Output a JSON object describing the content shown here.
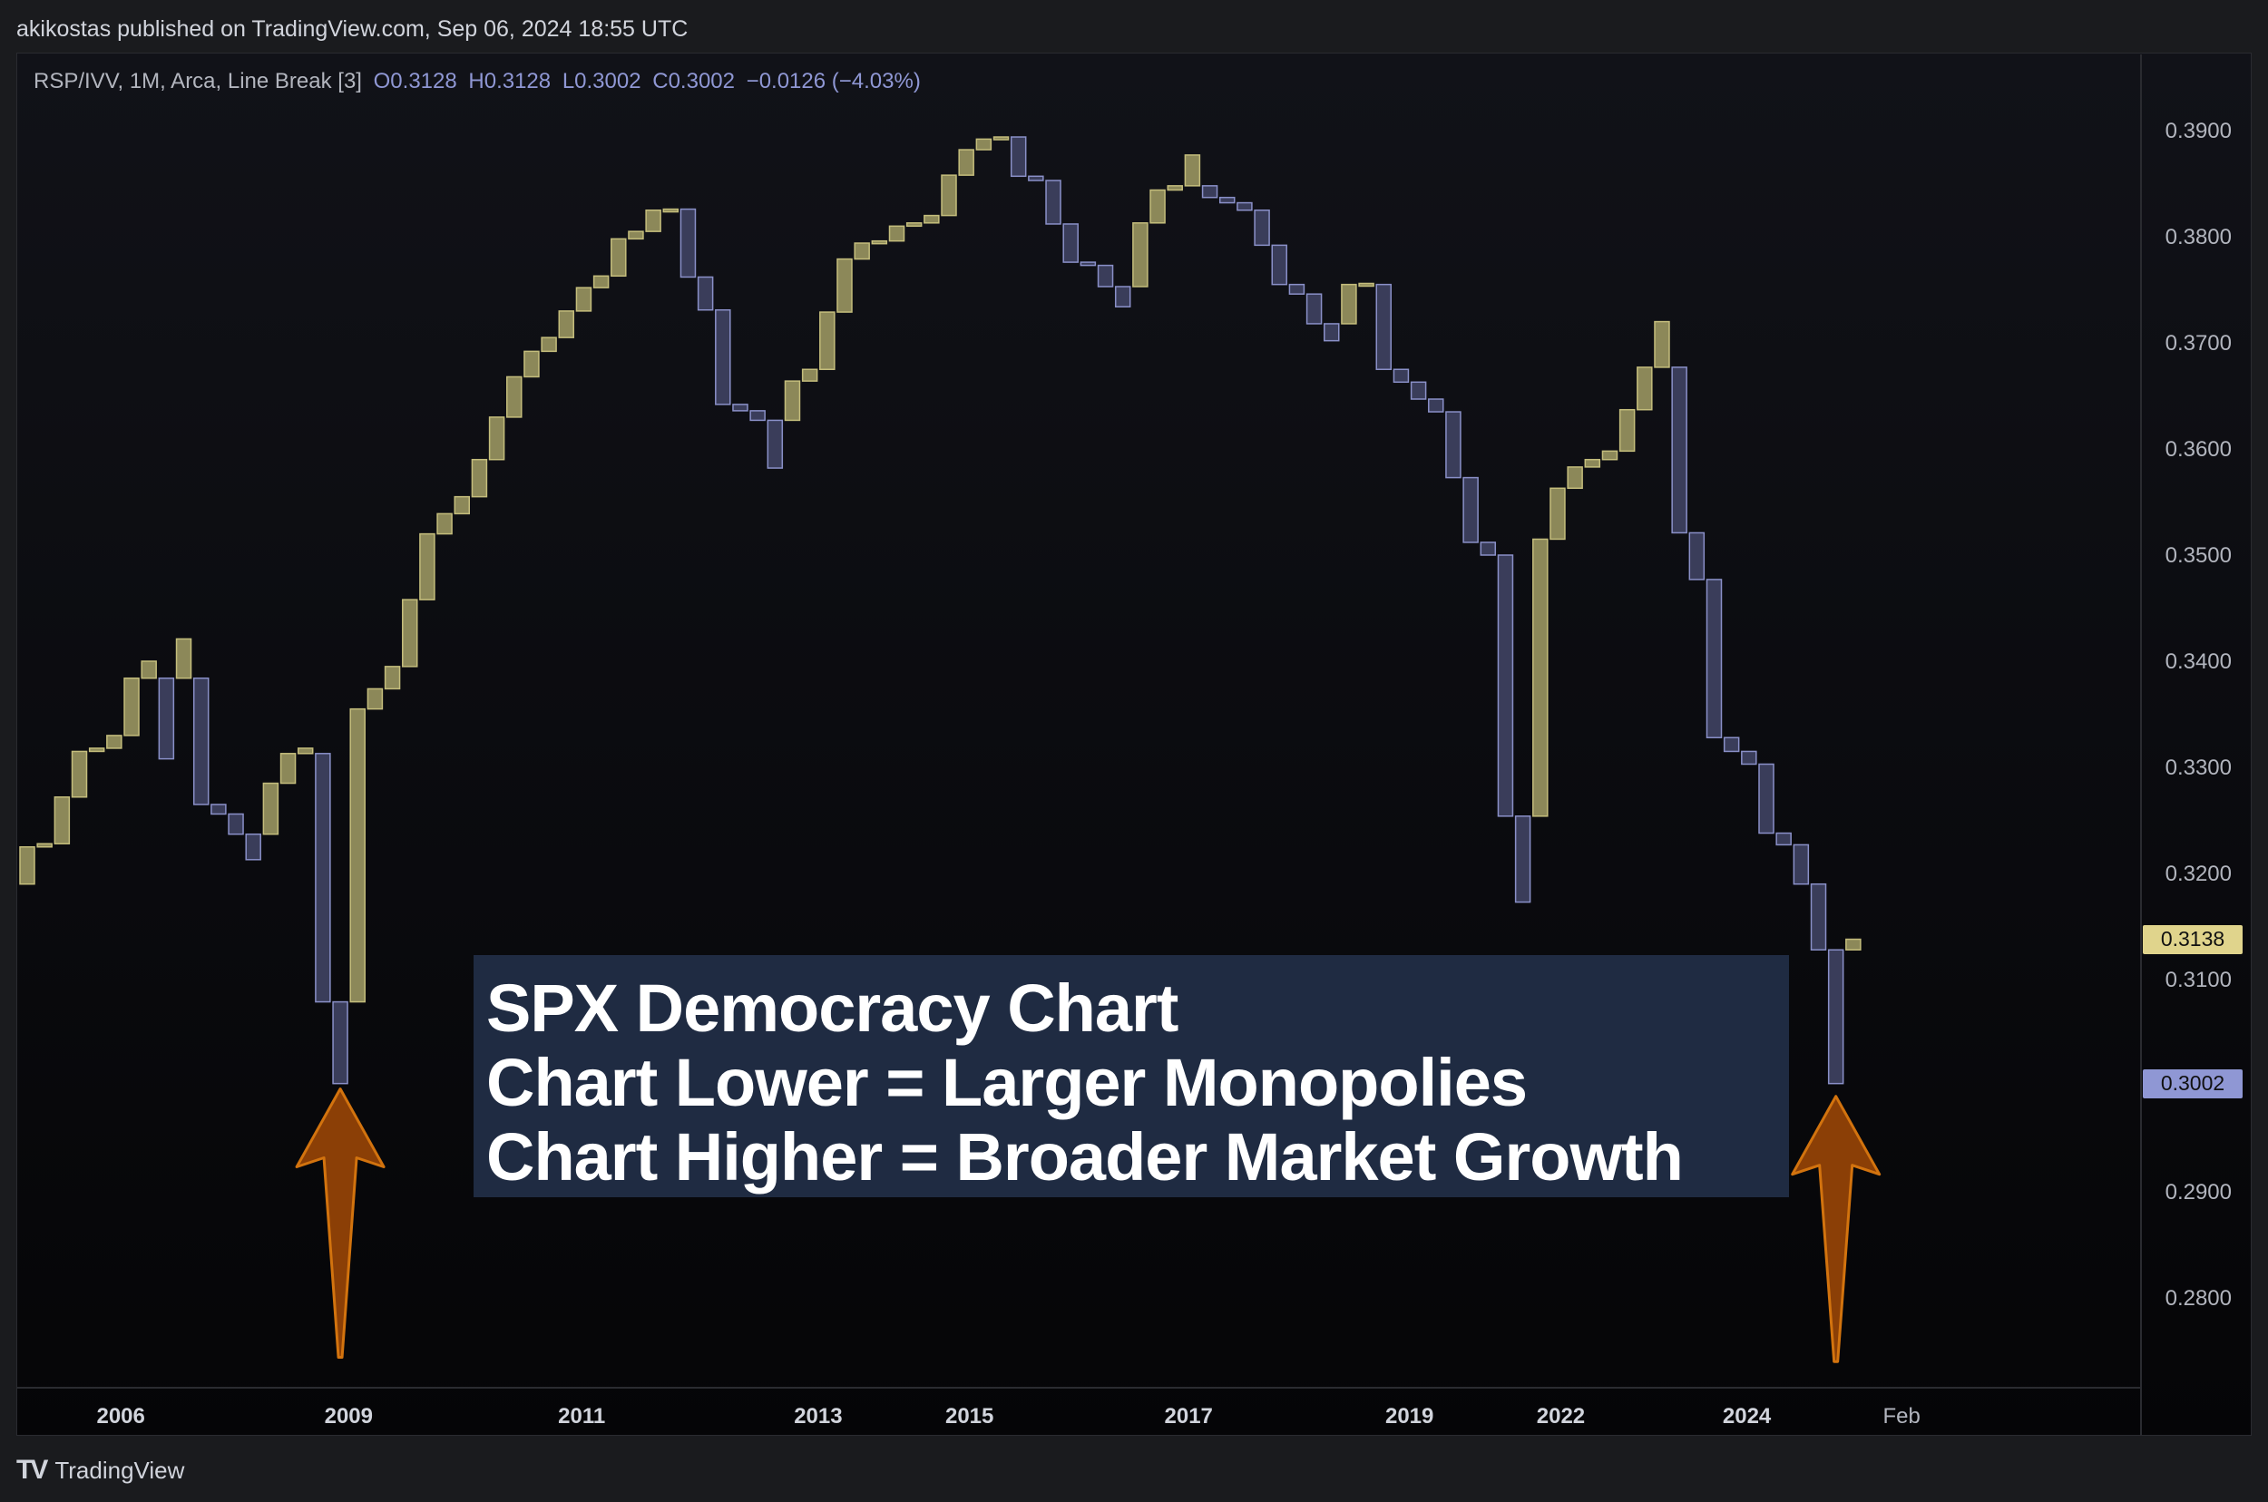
{
  "header": {
    "published_by": "akikostas published on TradingView.com, Sep 06, 2024 18:55 UTC"
  },
  "legend": {
    "symbol": "RSP/IVV, 1M, Arca, Line Break [3]",
    "open": "O0.3128",
    "high": "H0.3128",
    "low": "L0.3002",
    "close": "C0.3002",
    "change": "−0.0126 (−4.03%)"
  },
  "annotation": {
    "line1": "SPX Democracy Chart",
    "line2": "Chart Lower = Larger Monopolies",
    "line3": "Chart Higher = Broader Market Growth"
  },
  "price_tags": {
    "current": "0.3138",
    "last_close": "0.3002"
  },
  "footer": {
    "logo_mark": "TV",
    "logo_text": "TradingView"
  },
  "colors": {
    "up": "#8c8859",
    "up_border": "#c4bd7c",
    "down": "#3a3d5a",
    "down_border": "#8a90c8",
    "arrow_fill": "#8b3f06",
    "arrow_stroke": "#d2730e",
    "tag_current": "#e0d48c",
    "tag_last": "#8f97d4"
  },
  "chart_data": {
    "type": "line_break",
    "title": "RSP/IVV, 1M, Arca, Line Break [3]",
    "ylim": [
      0.2735,
      0.3958
    ],
    "y_ticks": [
      0.39,
      0.38,
      0.37,
      0.36,
      0.35,
      0.34,
      0.33,
      0.32,
      0.31,
      0.29,
      0.28
    ],
    "y_tick_labels": [
      "0.3900",
      "0.3800",
      "0.3700",
      "0.3600",
      "0.3500",
      "0.3400",
      "0.3300",
      "0.3200",
      "0.3100",
      "0.2900",
      "0.2800"
    ],
    "x_labels": [
      {
        "label": "2006",
        "brick": 5.8
      },
      {
        "label": "2009",
        "brick": 18.9
      },
      {
        "label": "2011",
        "brick": 32.3
      },
      {
        "label": "2013",
        "brick": 45.9
      },
      {
        "label": "2015",
        "brick": 54.6
      },
      {
        "label": "2017",
        "brick": 67.2
      },
      {
        "label": "2019",
        "brick": 79.9
      },
      {
        "label": "2022",
        "brick": 88.6
      },
      {
        "label": "2024",
        "brick": 99.3
      },
      {
        "label": "Feb",
        "brick": 108.2
      }
    ],
    "bricks": [
      {
        "open": 0.319,
        "close": 0.3225
      },
      {
        "open": 0.3225,
        "close": 0.3228
      },
      {
        "open": 0.3228,
        "close": 0.3272
      },
      {
        "open": 0.3272,
        "close": 0.3315
      },
      {
        "open": 0.3315,
        "close": 0.3318
      },
      {
        "open": 0.3318,
        "close": 0.333
      },
      {
        "open": 0.333,
        "close": 0.3384
      },
      {
        "open": 0.3384,
        "close": 0.34
      },
      {
        "open": 0.3384,
        "close": 0.3308
      },
      {
        "open": 0.3384,
        "close": 0.3421
      },
      {
        "open": 0.3384,
        "close": 0.3265
      },
      {
        "open": 0.3265,
        "close": 0.3256
      },
      {
        "open": 0.3256,
        "close": 0.3237
      },
      {
        "open": 0.3237,
        "close": 0.3213
      },
      {
        "open": 0.3237,
        "close": 0.3285
      },
      {
        "open": 0.3285,
        "close": 0.3313
      },
      {
        "open": 0.3313,
        "close": 0.3318
      },
      {
        "open": 0.3313,
        "close": 0.3079
      },
      {
        "open": 0.3079,
        "close": 0.3002
      },
      {
        "open": 0.3079,
        "close": 0.3355
      },
      {
        "open": 0.3355,
        "close": 0.3374
      },
      {
        "open": 0.3374,
        "close": 0.3395
      },
      {
        "open": 0.3395,
        "close": 0.3458
      },
      {
        "open": 0.3458,
        "close": 0.352
      },
      {
        "open": 0.352,
        "close": 0.3539
      },
      {
        "open": 0.3539,
        "close": 0.3555
      },
      {
        "open": 0.3555,
        "close": 0.359
      },
      {
        "open": 0.359,
        "close": 0.363
      },
      {
        "open": 0.363,
        "close": 0.3668
      },
      {
        "open": 0.3668,
        "close": 0.3692
      },
      {
        "open": 0.3692,
        "close": 0.3705
      },
      {
        "open": 0.3705,
        "close": 0.373
      },
      {
        "open": 0.373,
        "close": 0.3752
      },
      {
        "open": 0.3752,
        "close": 0.3763
      },
      {
        "open": 0.3763,
        "close": 0.3798
      },
      {
        "open": 0.3798,
        "close": 0.3805
      },
      {
        "open": 0.3805,
        "close": 0.3825
      },
      {
        "open": 0.3825,
        "close": 0.3826
      },
      {
        "open": 0.3826,
        "close": 0.3762
      },
      {
        "open": 0.3762,
        "close": 0.3731
      },
      {
        "open": 0.3731,
        "close": 0.3642
      },
      {
        "open": 0.3642,
        "close": 0.3636
      },
      {
        "open": 0.3636,
        "close": 0.3627
      },
      {
        "open": 0.3627,
        "close": 0.3582
      },
      {
        "open": 0.3627,
        "close": 0.3664
      },
      {
        "open": 0.3664,
        "close": 0.3675
      },
      {
        "open": 0.3675,
        "close": 0.3729
      },
      {
        "open": 0.3729,
        "close": 0.3779
      },
      {
        "open": 0.3779,
        "close": 0.3794
      },
      {
        "open": 0.3794,
        "close": 0.3796
      },
      {
        "open": 0.3796,
        "close": 0.381
      },
      {
        "open": 0.381,
        "close": 0.3813
      },
      {
        "open": 0.3813,
        "close": 0.382
      },
      {
        "open": 0.382,
        "close": 0.3858
      },
      {
        "open": 0.3858,
        "close": 0.3882
      },
      {
        "open": 0.3882,
        "close": 0.3892
      },
      {
        "open": 0.3892,
        "close": 0.3894
      },
      {
        "open": 0.3894,
        "close": 0.3857
      },
      {
        "open": 0.3857,
        "close": 0.3853
      },
      {
        "open": 0.3853,
        "close": 0.3812
      },
      {
        "open": 0.3812,
        "close": 0.3776
      },
      {
        "open": 0.3776,
        "close": 0.3773
      },
      {
        "open": 0.3773,
        "close": 0.3753
      },
      {
        "open": 0.3753,
        "close": 0.3734
      },
      {
        "open": 0.3753,
        "close": 0.3813
      },
      {
        "open": 0.3813,
        "close": 0.3844
      },
      {
        "open": 0.3844,
        "close": 0.3848
      },
      {
        "open": 0.3848,
        "close": 0.3877
      },
      {
        "open": 0.3848,
        "close": 0.3837
      },
      {
        "open": 0.3837,
        "close": 0.3832
      },
      {
        "open": 0.3832,
        "close": 0.3825
      },
      {
        "open": 0.3825,
        "close": 0.3792
      },
      {
        "open": 0.3792,
        "close": 0.3755
      },
      {
        "open": 0.3755,
        "close": 0.3746
      },
      {
        "open": 0.3746,
        "close": 0.3718
      },
      {
        "open": 0.3718,
        "close": 0.3702
      },
      {
        "open": 0.3718,
        "close": 0.3755
      },
      {
        "open": 0.3755,
        "close": 0.3756
      },
      {
        "open": 0.3755,
        "close": 0.3675
      },
      {
        "open": 0.3675,
        "close": 0.3663
      },
      {
        "open": 0.3663,
        "close": 0.3647
      },
      {
        "open": 0.3647,
        "close": 0.3635
      },
      {
        "open": 0.3635,
        "close": 0.3573
      },
      {
        "open": 0.3573,
        "close": 0.3512
      },
      {
        "open": 0.3512,
        "close": 0.35
      },
      {
        "open": 0.35,
        "close": 0.3254
      },
      {
        "open": 0.3254,
        "close": 0.3173
      },
      {
        "open": 0.3254,
        "close": 0.3515
      },
      {
        "open": 0.3515,
        "close": 0.3563
      },
      {
        "open": 0.3563,
        "close": 0.3583
      },
      {
        "open": 0.3583,
        "close": 0.359
      },
      {
        "open": 0.359,
        "close": 0.3598
      },
      {
        "open": 0.3598,
        "close": 0.3637
      },
      {
        "open": 0.3637,
        "close": 0.3677
      },
      {
        "open": 0.3677,
        "close": 0.372
      },
      {
        "open": 0.3677,
        "close": 0.3521
      },
      {
        "open": 0.3521,
        "close": 0.3477
      },
      {
        "open": 0.3477,
        "close": 0.3328
      },
      {
        "open": 0.3328,
        "close": 0.3315
      },
      {
        "open": 0.3315,
        "close": 0.3303
      },
      {
        "open": 0.3303,
        "close": 0.3238
      },
      {
        "open": 0.3238,
        "close": 0.3227
      },
      {
        "open": 0.3227,
        "close": 0.319
      },
      {
        "open": 0.319,
        "close": 0.3128
      },
      {
        "open": 0.3128,
        "close": 0.3002
      },
      {
        "open": 0.3128,
        "close": 0.3138
      }
    ],
    "current_price": 0.3138,
    "last_close": 0.3002,
    "arrows": [
      {
        "brick": 18,
        "tip_value": 0.2997,
        "tail_value": 0.2744
      },
      {
        "brick": 104,
        "tip_value": 0.299,
        "tail_value": 0.274
      }
    ]
  }
}
